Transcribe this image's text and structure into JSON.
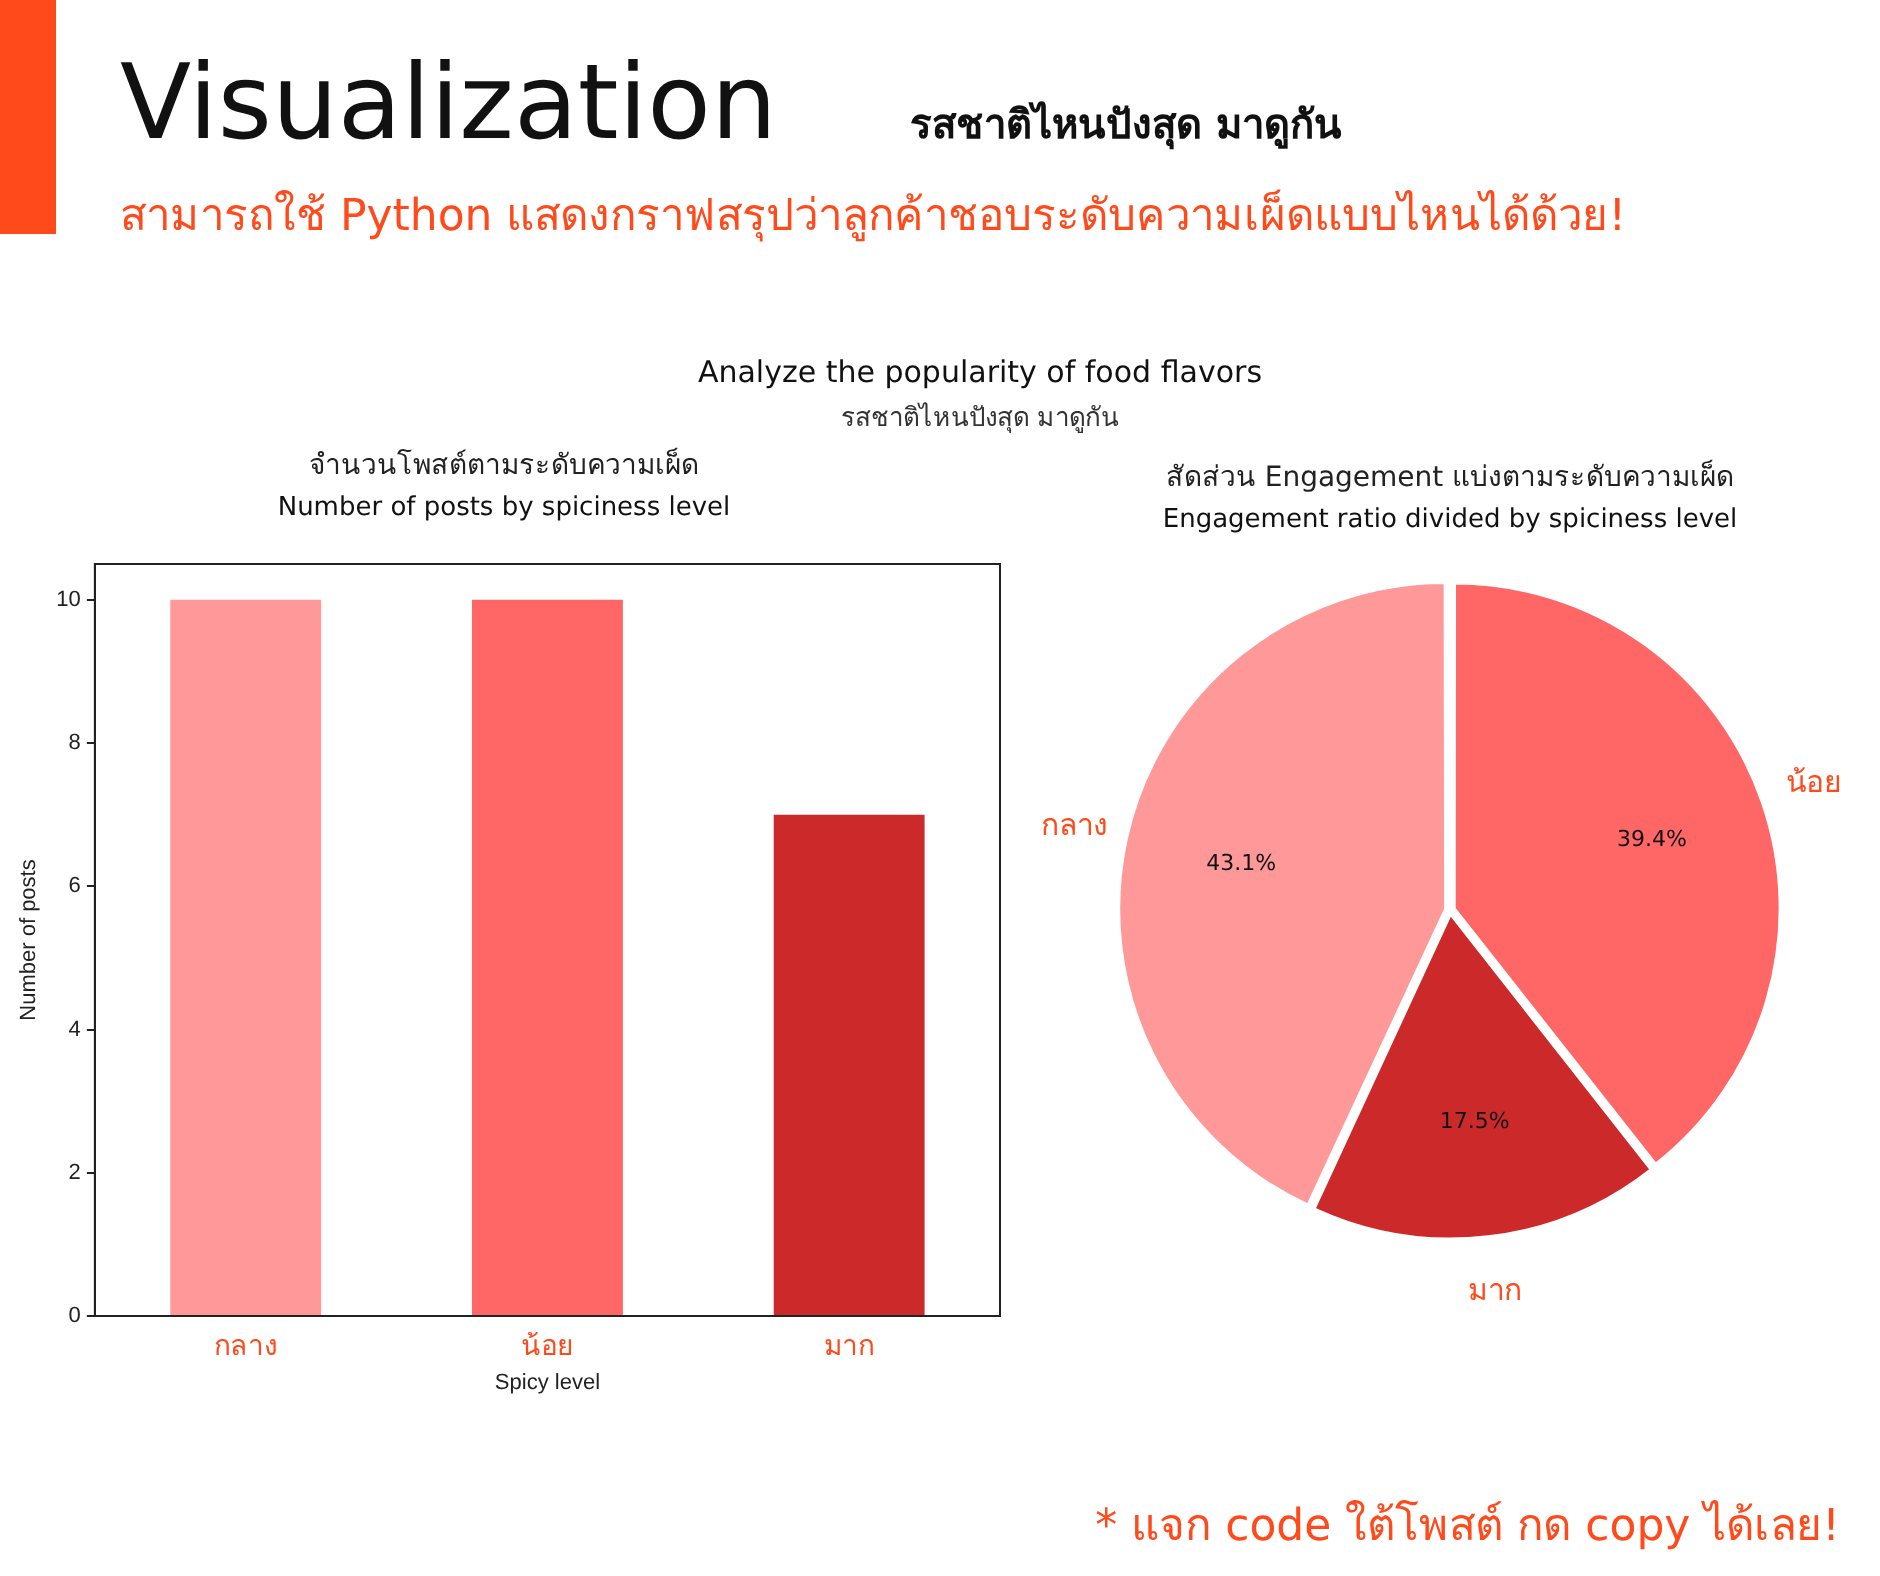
{
  "chart_data": [
    {
      "type": "other",
      "title": "Visualization",
      "subtitle": "รสชาติไหนปังสุด มาดูกัน",
      "annotations": [
        "สามารถใช้ Python แสดงกราฟสรุปว่าลูกค้าชอบระดับความเผ็ดแบบไหนได้ด้วย!",
        "Analyze the popularity of food flavors",
        "รสชาติไหนปังสุด มาดูกัน",
        "* แจก code ใต้โพสต์ กด copy ได้เลย!"
      ]
    },
    {
      "type": "bar",
      "title": "จำนวนโพสต์ตามระดับความเผ็ด",
      "subtitle": "Number of posts by spiciness level",
      "xlabel": "Spicy level",
      "ylabel": "Number of posts",
      "categories": [
        "กลาง",
        "น้อย",
        "มาก"
      ],
      "values": [
        10,
        10,
        7
      ],
      "colors": [
        "#ff9999",
        "#ff6666",
        "#cc2a2a"
      ],
      "ylim": [
        0,
        10.5
      ],
      "yticks": [
        0,
        2,
        4,
        6,
        8,
        10
      ],
      "grid": false,
      "legend": false
    },
    {
      "type": "pie",
      "title": "สัดส่วน Engagement แบ่งตามระดับความเผ็ด",
      "subtitle": "Engagement ratio divided by spiciness level",
      "categories": [
        "กลาง",
        "น้อย",
        "มาก"
      ],
      "values": [
        43.1,
        39.4,
        17.5
      ],
      "colors": [
        "#ff9999",
        "#ff6666",
        "#cc2a2a"
      ],
      "value_labels": [
        "43.1%",
        "39.4%",
        "17.5%"
      ],
      "legend": false
    }
  ]
}
